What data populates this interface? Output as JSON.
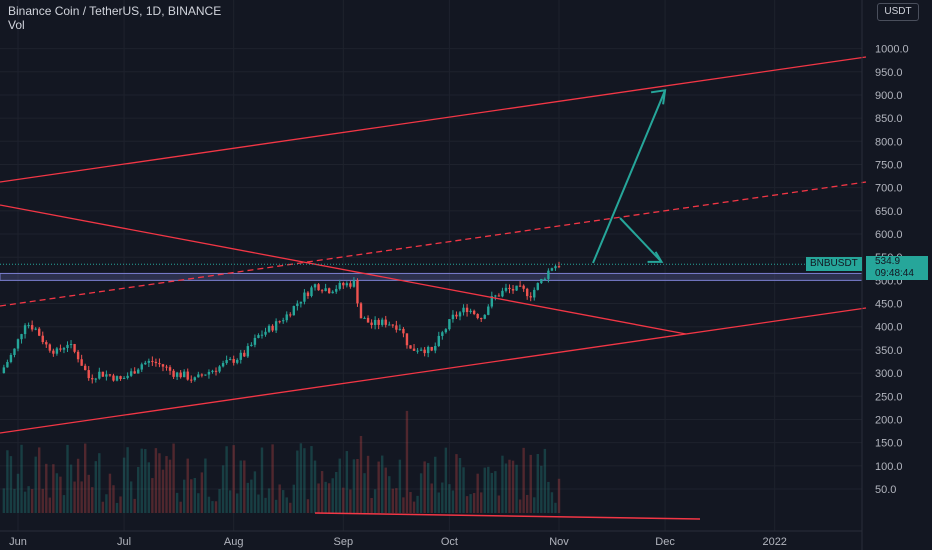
{
  "header": {
    "title": "Binance Coin / TetherUS, 1D, BINANCE",
    "vol_label": "Vol"
  },
  "currency_button": "USDT",
  "symbol_tag": "BNBUSDT",
  "last_price": "534.9",
  "countdown": "09:48:44",
  "colors": {
    "background": "#131722",
    "up": "#26a69a",
    "down": "#ef5350",
    "trendline": "#f23645",
    "zone": "#5b5f9e",
    "arrow": "#26a69a"
  },
  "chart_data": {
    "type": "candlestick",
    "title": "Binance Coin / TetherUS, 1D, BINANCE",
    "y_axis": {
      "ticks": [
        "1000.0",
        "950.0",
        "900.0",
        "850.0",
        "800.0",
        "750.0",
        "700.0",
        "650.0",
        "600.0",
        "550.0",
        "500.0",
        "450.0",
        "400.0",
        "350.0",
        "300.0",
        "250.0",
        "200.0",
        "150.0",
        "100.0",
        "50.0"
      ],
      "ylim": [
        0,
        1050
      ]
    },
    "x_axis": {
      "ticks": [
        "Jun",
        "Jul",
        "Aug",
        "Sep",
        "Oct",
        "Nov",
        "Dec",
        "2022"
      ]
    },
    "close_series": [
      {
        "date": "2021-05-28",
        "close": 300
      },
      {
        "date": "2021-06-01",
        "close": 350
      },
      {
        "date": "2021-06-04",
        "close": 410
      },
      {
        "date": "2021-06-07",
        "close": 395
      },
      {
        "date": "2021-06-10",
        "close": 360
      },
      {
        "date": "2021-06-13",
        "close": 345
      },
      {
        "date": "2021-06-16",
        "close": 365
      },
      {
        "date": "2021-06-19",
        "close": 335
      },
      {
        "date": "2021-06-22",
        "close": 290
      },
      {
        "date": "2021-06-25",
        "close": 300
      },
      {
        "date": "2021-06-28",
        "close": 295
      },
      {
        "date": "2021-07-01",
        "close": 285
      },
      {
        "date": "2021-07-04",
        "close": 300
      },
      {
        "date": "2021-07-07",
        "close": 320
      },
      {
        "date": "2021-07-10",
        "close": 325
      },
      {
        "date": "2021-07-13",
        "close": 315
      },
      {
        "date": "2021-07-16",
        "close": 300
      },
      {
        "date": "2021-07-19",
        "close": 295
      },
      {
        "date": "2021-07-22",
        "close": 285
      },
      {
        "date": "2021-07-25",
        "close": 300
      },
      {
        "date": "2021-07-28",
        "close": 310
      },
      {
        "date": "2021-08-01",
        "close": 325
      },
      {
        "date": "2021-08-05",
        "close": 340
      },
      {
        "date": "2021-08-09",
        "close": 380
      },
      {
        "date": "2021-08-13",
        "close": 400
      },
      {
        "date": "2021-08-17",
        "close": 425
      },
      {
        "date": "2021-08-21",
        "close": 460
      },
      {
        "date": "2021-08-25",
        "close": 490
      },
      {
        "date": "2021-08-29",
        "close": 480
      },
      {
        "date": "2021-09-02",
        "close": 490
      },
      {
        "date": "2021-09-05",
        "close": 495
      },
      {
        "date": "2021-09-07",
        "close": 420
      },
      {
        "date": "2021-09-10",
        "close": 405
      },
      {
        "date": "2021-09-14",
        "close": 410
      },
      {
        "date": "2021-09-18",
        "close": 400
      },
      {
        "date": "2021-09-21",
        "close": 350
      },
      {
        "date": "2021-09-24",
        "close": 355
      },
      {
        "date": "2021-09-27",
        "close": 345
      },
      {
        "date": "2021-09-30",
        "close": 385
      },
      {
        "date": "2021-10-03",
        "close": 420
      },
      {
        "date": "2021-10-07",
        "close": 440
      },
      {
        "date": "2021-10-11",
        "close": 420
      },
      {
        "date": "2021-10-14",
        "close": 460
      },
      {
        "date": "2021-10-18",
        "close": 480
      },
      {
        "date": "2021-10-22",
        "close": 480
      },
      {
        "date": "2021-10-25",
        "close": 470
      },
      {
        "date": "2021-10-28",
        "close": 500
      },
      {
        "date": "2021-10-31",
        "close": 530
      },
      {
        "date": "2021-11-02",
        "close": 534.9
      }
    ],
    "annotations": {
      "horizontal_zone": [
        500,
        515
      ],
      "price_line": 534.9,
      "arrow_up_target": {
        "date": "2021-12-01",
        "price": 910
      },
      "arrow_down_target": {
        "date": "2021-11-30",
        "price": 540
      }
    }
  }
}
